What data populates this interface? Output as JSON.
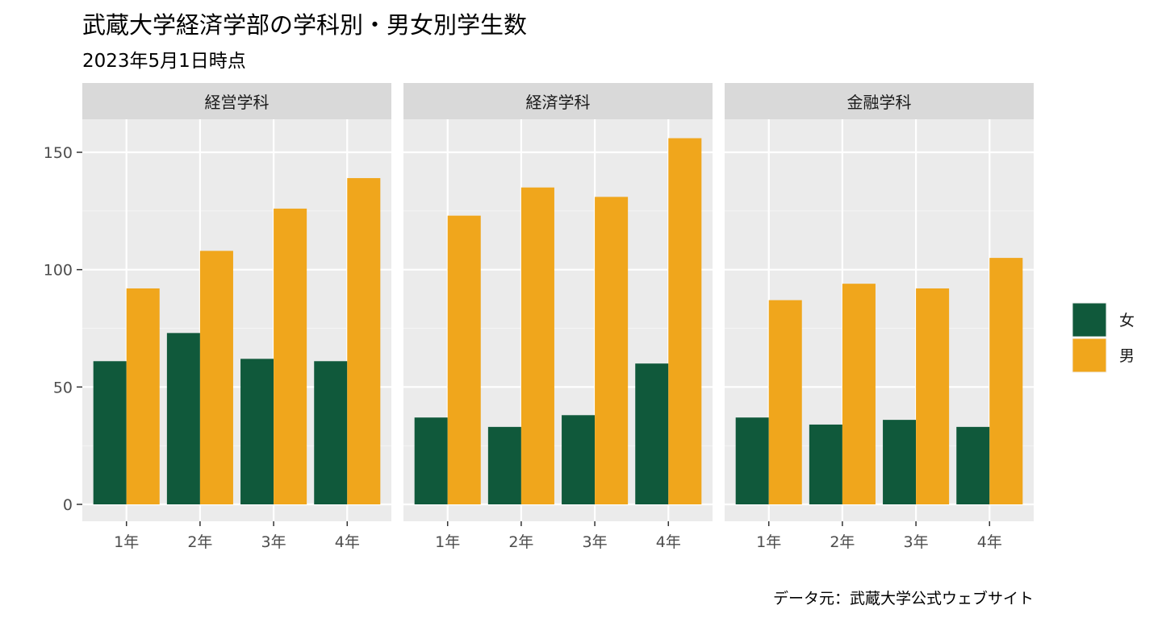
{
  "chart_data": {
    "type": "bar",
    "title": "武蔵大学経済学部の学科別・男女別学生数",
    "subtitle": "2023年5月1日時点",
    "caption": "データ元：武蔵大学公式ウェブサイト",
    "xlabel": "",
    "ylabel": "",
    "ylim": [
      0,
      163
    ],
    "y_ticks": [
      0,
      50,
      100,
      150
    ],
    "categories": [
      "1年",
      "2年",
      "3年",
      "4年"
    ],
    "legend_position": "right",
    "grid": true,
    "colors": {
      "女": "#10593b",
      "男": "#f0a61c"
    },
    "series_names": [
      "女",
      "男"
    ],
    "panels": [
      {
        "name": "経営学科",
        "series": [
          {
            "name": "女",
            "values": [
              61,
              73,
              62,
              61
            ]
          },
          {
            "name": "男",
            "values": [
              92,
              108,
              126,
              139
            ]
          }
        ]
      },
      {
        "name": "経済学科",
        "series": [
          {
            "name": "女",
            "values": [
              37,
              33,
              38,
              60
            ]
          },
          {
            "name": "男",
            "values": [
              123,
              135,
              131,
              156
            ]
          }
        ]
      },
      {
        "name": "金融学科",
        "series": [
          {
            "name": "女",
            "values": [
              37,
              34,
              36,
              33
            ]
          },
          {
            "name": "男",
            "values": [
              87,
              94,
              92,
              105
            ]
          }
        ]
      }
    ]
  }
}
